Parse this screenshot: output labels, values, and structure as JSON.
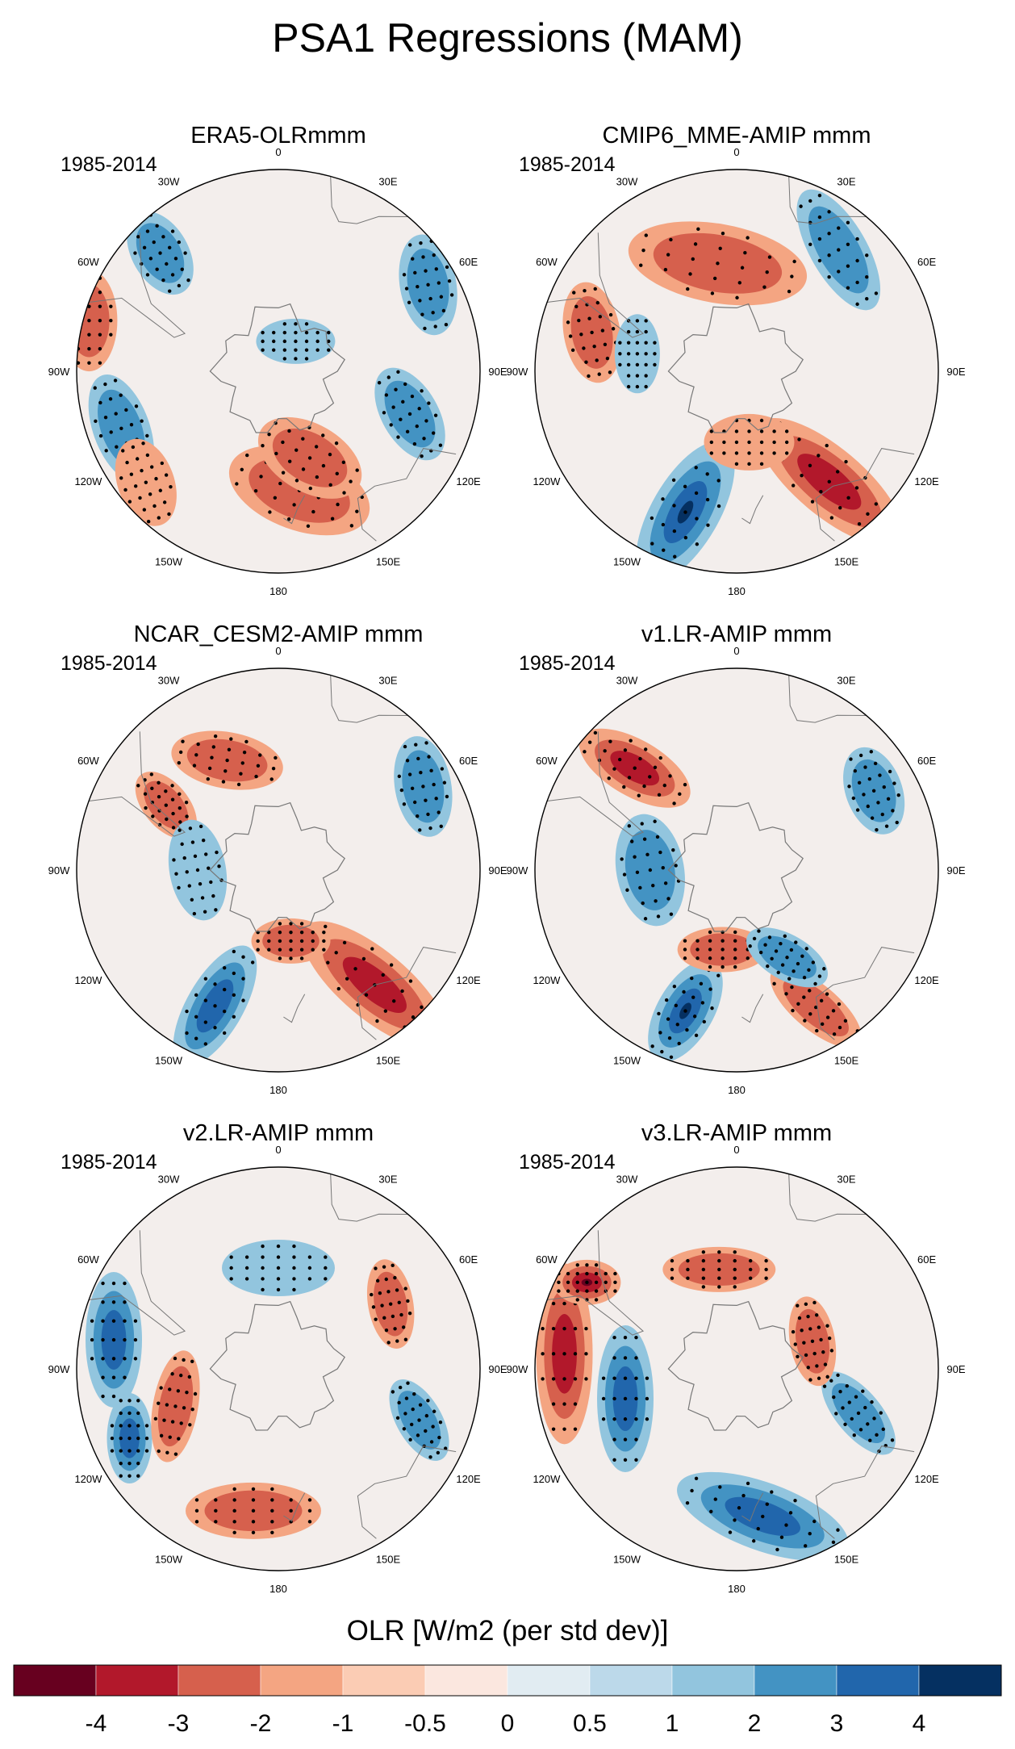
{
  "figure": {
    "title": "PSA1 Regressions (MAM)",
    "projection": "south-polar-stereographic",
    "stippling": "statistically significant regions marked with dots"
  },
  "longitude_labels": [
    "0",
    "30E",
    "60E",
    "90E",
    "120E",
    "150E",
    "180",
    "150W",
    "120W",
    "90W",
    "60W",
    "30W"
  ],
  "panels": [
    {
      "title": "ERA5-OLRmmm",
      "period": "1985-2014",
      "features": [
        {
          "kind": "pos",
          "lon": 170,
          "lat": -48,
          "rx": 1.3,
          "ry": 0.7,
          "rot": 20,
          "level": 2
        },
        {
          "kind": "pos",
          "lon": 160,
          "lat": -58,
          "rx": 1.0,
          "ry": 0.6,
          "rot": 30,
          "level": 2
        },
        {
          "kind": "neg",
          "lon": 108,
          "lat": -42,
          "rx": 0.9,
          "ry": 0.5,
          "rot": 60,
          "level": 2
        },
        {
          "kind": "neg",
          "lon": 60,
          "lat": -30,
          "rx": 0.9,
          "ry": 0.5,
          "rot": 80,
          "level": 2
        },
        {
          "kind": "neg",
          "lon": -110,
          "lat": -32,
          "rx": 1.0,
          "ry": 0.5,
          "rot": 70,
          "level": 2
        },
        {
          "kind": "pos",
          "lon": -75,
          "lat": -22,
          "rx": 0.9,
          "ry": 0.5,
          "rot": 90,
          "level": 2
        },
        {
          "kind": "neg",
          "lon": -45,
          "lat": -32,
          "rx": 0.8,
          "ry": 0.5,
          "rot": 60,
          "level": 2
        },
        {
          "kind": "pos",
          "lon": -130,
          "lat": -30,
          "rx": 0.8,
          "ry": 0.5,
          "rot": 70,
          "level": 1
        },
        {
          "kind": "neg",
          "lon": 30,
          "lat": -78,
          "rx": 0.7,
          "ry": 0.4,
          "rot": 0,
          "level": 1
        }
      ]
    },
    {
      "title": "CMIP6_MME-AMIP  mmm",
      "period": "1985-2014",
      "features": [
        {
          "kind": "pos",
          "lon": -10,
          "lat": -52,
          "rx": 1.6,
          "ry": 0.7,
          "rot": 10,
          "level": 2
        },
        {
          "kind": "pos",
          "lon": 140,
          "lat": -40,
          "rx": 1.6,
          "ry": 0.6,
          "rot": 40,
          "level": 3
        },
        {
          "kind": "neg",
          "lon": -160,
          "lat": -38,
          "rx": 1.4,
          "ry": 0.6,
          "rot": 120,
          "level": 4
        },
        {
          "kind": "neg",
          "lon": 40,
          "lat": -35,
          "rx": 1.2,
          "ry": 0.5,
          "rot": 60,
          "level": 2
        },
        {
          "kind": "pos",
          "lon": -75,
          "lat": -38,
          "rx": 0.9,
          "ry": 0.5,
          "rot": 80,
          "level": 2
        },
        {
          "kind": "neg",
          "lon": -80,
          "lat": -55,
          "rx": 0.7,
          "ry": 0.4,
          "rot": 90,
          "level": 1
        },
        {
          "kind": "pos",
          "lon": 170,
          "lat": -65,
          "rx": 0.8,
          "ry": 0.5,
          "rot": 0,
          "level": 1
        }
      ]
    },
    {
      "title": "NCAR_CESM2-AMIP  mmm",
      "period": "1985-2014",
      "features": [
        {
          "kind": "pos",
          "lon": 140,
          "lat": -38,
          "rx": 1.6,
          "ry": 0.6,
          "rot": 40,
          "level": 3
        },
        {
          "kind": "pos",
          "lon": -25,
          "lat": -48,
          "rx": 1.0,
          "ry": 0.5,
          "rot": 10,
          "level": 2
        },
        {
          "kind": "pos",
          "lon": -60,
          "lat": -45,
          "rx": 0.7,
          "ry": 0.4,
          "rot": 50,
          "level": 2
        },
        {
          "kind": "neg",
          "lon": -155,
          "lat": -38,
          "rx": 1.2,
          "ry": 0.5,
          "rot": 120,
          "level": 3
        },
        {
          "kind": "neg",
          "lon": -90,
          "lat": -62,
          "rx": 0.9,
          "ry": 0.5,
          "rot": 80,
          "level": 1
        },
        {
          "kind": "neg",
          "lon": 60,
          "lat": -32,
          "rx": 0.9,
          "ry": 0.5,
          "rot": 80,
          "level": 2
        },
        {
          "kind": "pos",
          "lon": 170,
          "lat": -65,
          "rx": 0.7,
          "ry": 0.4,
          "rot": 0,
          "level": 2
        }
      ]
    },
    {
      "title": "v1.LR-AMIP  mmm",
      "period": "1985-2014",
      "features": [
        {
          "kind": "pos",
          "lon": -45,
          "lat": -40,
          "rx": 1.1,
          "ry": 0.5,
          "rot": 30,
          "level": 3
        },
        {
          "kind": "neg",
          "lon": -160,
          "lat": -38,
          "rx": 1.0,
          "ry": 0.5,
          "rot": 120,
          "level": 4
        },
        {
          "kind": "neg",
          "lon": -90,
          "lat": -60,
          "rx": 1.0,
          "ry": 0.6,
          "rot": 80,
          "level": 2
        },
        {
          "kind": "pos",
          "lon": -170,
          "lat": -62,
          "rx": 0.8,
          "ry": 0.4,
          "rot": 0,
          "level": 2
        },
        {
          "kind": "neg",
          "lon": 60,
          "lat": -35,
          "rx": 0.8,
          "ry": 0.5,
          "rot": 70,
          "level": 2
        },
        {
          "kind": "pos",
          "lon": 150,
          "lat": -35,
          "rx": 1.0,
          "ry": 0.4,
          "rot": 40,
          "level": 2
        },
        {
          "kind": "neg",
          "lon": 150,
          "lat": -55,
          "rx": 0.8,
          "ry": 0.4,
          "rot": 30,
          "level": 2
        }
      ]
    },
    {
      "title": "v2.LR-AMIP  mmm",
      "period": "1985-2014",
      "features": [
        {
          "kind": "neg",
          "lon": -80,
          "lat": -32,
          "rx": 1.2,
          "ry": 0.5,
          "rot": 90,
          "level": 3
        },
        {
          "kind": "neg",
          "lon": -115,
          "lat": -33,
          "rx": 0.8,
          "ry": 0.4,
          "rot": 90,
          "level": 3
        },
        {
          "kind": "pos",
          "lon": -110,
          "lat": -52,
          "rx": 1.0,
          "ry": 0.4,
          "rot": 100,
          "level": 2
        },
        {
          "kind": "pos",
          "lon": -170,
          "lat": -40,
          "rx": 1.2,
          "ry": 0.5,
          "rot": 0,
          "level": 2
        },
        {
          "kind": "neg",
          "lon": 0,
          "lat": -55,
          "rx": 1.0,
          "ry": 0.5,
          "rot": 0,
          "level": 1
        },
        {
          "kind": "pos",
          "lon": 60,
          "lat": -45,
          "rx": 0.8,
          "ry": 0.4,
          "rot": 80,
          "level": 2
        },
        {
          "kind": "neg",
          "lon": 110,
          "lat": -38,
          "rx": 0.8,
          "ry": 0.4,
          "rot": 60,
          "level": 2
        }
      ]
    },
    {
      "title": "v3.LR-AMIP  mmm",
      "period": "1985-2014",
      "features": [
        {
          "kind": "pos",
          "lon": -85,
          "lat": -30,
          "rx": 1.6,
          "ry": 0.5,
          "rot": 90,
          "level": 3
        },
        {
          "kind": "neg",
          "lon": -105,
          "lat": -50,
          "rx": 1.3,
          "ry": 0.5,
          "rot": 90,
          "level": 3
        },
        {
          "kind": "neg",
          "lon": 170,
          "lat": -38,
          "rx": 1.6,
          "ry": 0.6,
          "rot": 20,
          "level": 3
        },
        {
          "kind": "pos",
          "lon": -60,
          "lat": -30,
          "rx": 0.6,
          "ry": 0.4,
          "rot": 0,
          "level": 4
        },
        {
          "kind": "pos",
          "lon": -10,
          "lat": -55,
          "rx": 1.0,
          "ry": 0.4,
          "rot": 0,
          "level": 2
        },
        {
          "kind": "neg",
          "lon": 110,
          "lat": -45,
          "rx": 0.9,
          "ry": 0.4,
          "rot": 50,
          "level": 2
        },
        {
          "kind": "pos",
          "lon": 70,
          "lat": -62,
          "rx": 0.8,
          "ry": 0.4,
          "rot": 80,
          "level": 2
        }
      ]
    }
  ],
  "colorbar": {
    "title": "OLR [W/m2 (per std dev)]",
    "colors": [
      "#67001f",
      "#b2182b",
      "#d6604d",
      "#f4a582",
      "#fbccb4",
      "#fbe7df",
      "#e1ecf2",
      "#bcd9ea",
      "#92c5de",
      "#4393c3",
      "#2166ac",
      "#053061"
    ],
    "tick_labels": [
      "-4",
      "-3",
      "-2",
      "-1",
      "-0.5",
      "0",
      "0.5",
      "1",
      "2",
      "3",
      "4"
    ]
  },
  "palette": {
    "pos": [
      "#fbe7df",
      "#f4a582",
      "#d6604d",
      "#b2182b",
      "#67001f"
    ],
    "neg": [
      "#e1ecf2",
      "#92c5de",
      "#4393c3",
      "#2166ac",
      "#053061"
    ],
    "background": "#f3eeec",
    "coast": "#777777",
    "stipple": "#000000"
  }
}
